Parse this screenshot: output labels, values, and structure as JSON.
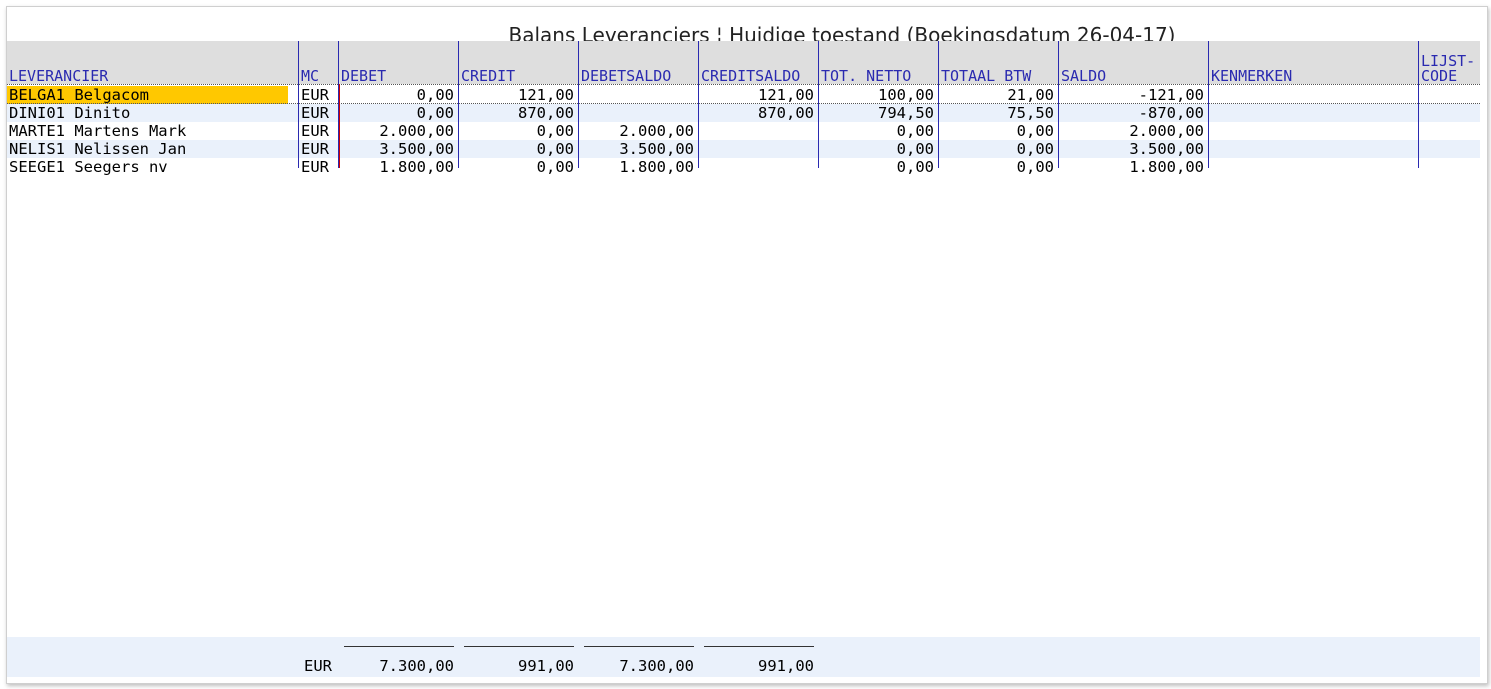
{
  "window": {
    "title": "Balans Leveranciers ¦ Huidige toestand (Boekingsdatum 26-04-17)"
  },
  "columns": [
    "LEVERANCIER",
    "MC",
    "DEBET",
    "CREDIT",
    "DEBETSALDO",
    "CREDITSALDO",
    "TOT. NETTO",
    "TOTAAL BTW",
    "SALDO",
    "KENMERKEN",
    "LIJST-\nCODE"
  ],
  "rows": [
    {
      "leverancier": "BELGA1 Belgacom",
      "mc": "EUR",
      "debet": "0,00",
      "credit": "121,00",
      "debetsaldo": "",
      "creditsaldo": "121,00",
      "tot_netto": "100,00",
      "totaal_btw": "21,00",
      "saldo": "-121,00",
      "kenmerken": "",
      "lijstcode": ""
    },
    {
      "leverancier": "DINI01 Dinito",
      "mc": "EUR",
      "debet": "0,00",
      "credit": "870,00",
      "debetsaldo": "",
      "creditsaldo": "870,00",
      "tot_netto": "794,50",
      "totaal_btw": "75,50",
      "saldo": "-870,00",
      "kenmerken": "",
      "lijstcode": ""
    },
    {
      "leverancier": "MARTE1 Martens Mark",
      "mc": "EUR",
      "debet": "2.000,00",
      "credit": "0,00",
      "debetsaldo": "2.000,00",
      "creditsaldo": "",
      "tot_netto": "0,00",
      "totaal_btw": "0,00",
      "saldo": "2.000,00",
      "kenmerken": "",
      "lijstcode": ""
    },
    {
      "leverancier": "NELIS1 Nelissen Jan",
      "mc": "EUR",
      "debet": "3.500,00",
      "credit": "0,00",
      "debetsaldo": "3.500,00",
      "creditsaldo": "",
      "tot_netto": "0,00",
      "totaal_btw": "0,00",
      "saldo": "3.500,00",
      "kenmerken": "",
      "lijstcode": ""
    },
    {
      "leverancier": "SEEGE1 Seegers nv",
      "mc": "EUR",
      "debet": "1.800,00",
      "credit": "0,00",
      "debetsaldo": "1.800,00",
      "creditsaldo": "",
      "tot_netto": "0,00",
      "totaal_btw": "0,00",
      "saldo": "1.800,00",
      "kenmerken": "",
      "lijstcode": ""
    }
  ],
  "totals": {
    "mc": "EUR",
    "debet": "7.300,00",
    "credit": "991,00",
    "debetsaldo": "7.300,00",
    "creditsaldo": "991,00"
  },
  "colors": {
    "header_text": "#2a2ab0",
    "selected_row": "#ffc800",
    "alt_row": "#eaf1fb",
    "header_bg": "#dedede"
  }
}
